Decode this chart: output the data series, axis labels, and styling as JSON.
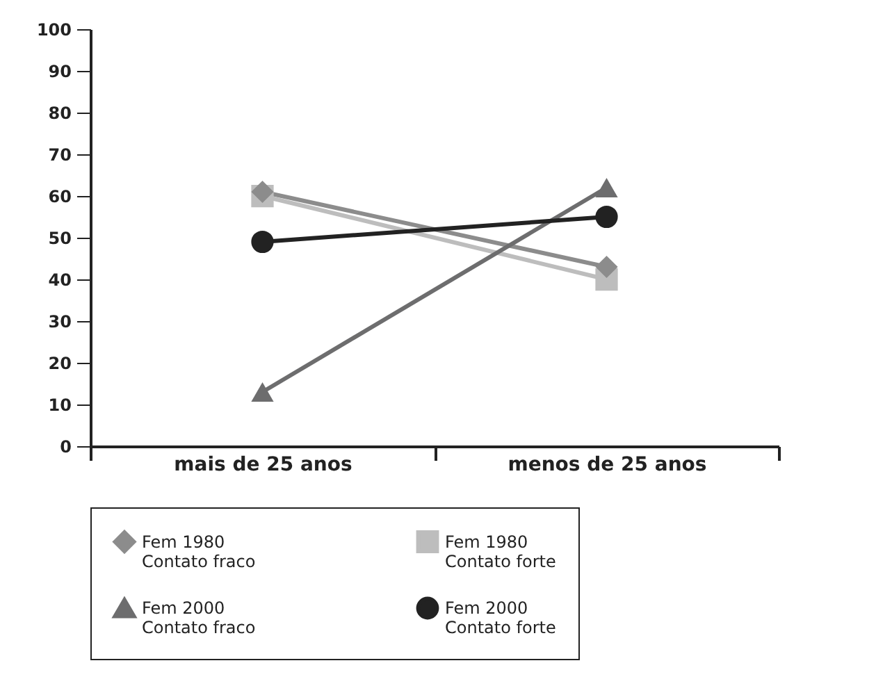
{
  "chart_data": {
    "type": "line",
    "categories": [
      "mais de 25 anos",
      "menos de 25 anos"
    ],
    "ylim": [
      0,
      100
    ],
    "yticks": [
      0,
      10,
      20,
      30,
      40,
      50,
      60,
      70,
      80,
      90,
      100
    ],
    "grid": false,
    "legend": "bottom",
    "line_style": "solid",
    "series": [
      {
        "name": "Fem 1980\nContato fraco",
        "color": "#8c8c8c",
        "marker": "diamond",
        "values": [
          61,
          43
        ]
      },
      {
        "name": "Fem 1980\nContato forte",
        "color": "#bdbdbd",
        "marker": "square",
        "values": [
          60,
          40
        ]
      },
      {
        "name": "Fem 2000\nContato fraco",
        "color": "#6d6d6e",
        "marker": "triangle",
        "values": [
          13,
          62
        ]
      },
      {
        "name": "Fem 2000\nContato forte",
        "color": "#222222",
        "marker": "circle",
        "values": [
          49,
          55
        ]
      }
    ]
  }
}
